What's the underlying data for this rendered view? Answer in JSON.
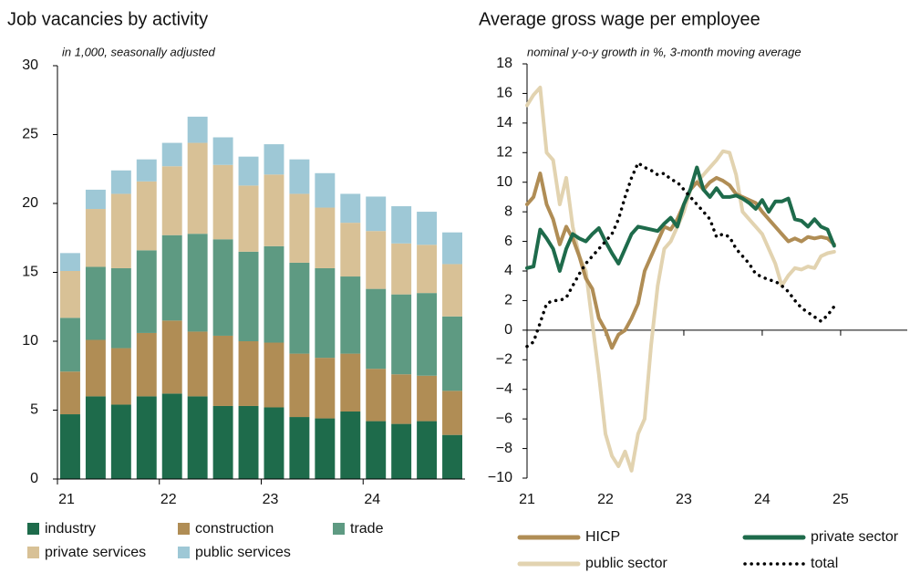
{
  "chart_data": [
    {
      "type": "bar",
      "stacked": true,
      "title": "Job vacancies by activity",
      "subtitle": "in 1,000, seasonally adjusted",
      "categories": [
        "21",
        null,
        null,
        null,
        "22",
        null,
        null,
        null,
        "23",
        null,
        null,
        null,
        "24",
        null,
        null,
        null
      ],
      "ylim": [
        0,
        30
      ],
      "yticks": [
        0,
        5,
        10,
        15,
        20,
        25,
        30
      ],
      "legend": "bottom",
      "series": [
        {
          "name": "industry",
          "color": "#1e6b4b",
          "values": [
            4.7,
            6.0,
            5.4,
            6.0,
            6.2,
            6.0,
            5.3,
            5.3,
            5.2,
            4.5,
            4.4,
            4.9,
            4.2,
            4.0,
            4.2,
            3.2
          ]
        },
        {
          "name": "construction",
          "color": "#b08d55",
          "values": [
            3.1,
            4.1,
            4.1,
            4.6,
            5.3,
            4.7,
            5.1,
            4.7,
            4.7,
            4.6,
            4.4,
            4.2,
            3.8,
            3.6,
            3.3,
            3.2
          ]
        },
        {
          "name": "trade",
          "color": "#5e9a82",
          "values": [
            3.9,
            5.3,
            5.8,
            6.0,
            6.2,
            7.1,
            7.0,
            6.5,
            7.0,
            6.6,
            6.5,
            5.6,
            5.8,
            5.8,
            6.0,
            5.4
          ]
        },
        {
          "name": "private services",
          "color": "#d8c196",
          "values": [
            3.4,
            4.2,
            5.4,
            5.0,
            5.0,
            6.6,
            5.4,
            4.8,
            5.2,
            5.0,
            4.4,
            3.9,
            4.2,
            3.7,
            3.5,
            3.8
          ]
        },
        {
          "name": "public services",
          "color": "#9ec8d6",
          "values": [
            1.3,
            1.4,
            1.7,
            1.6,
            1.7,
            1.9,
            2.0,
            2.1,
            2.2,
            2.5,
            2.5,
            2.1,
            2.5,
            2.7,
            2.4,
            2.3
          ]
        }
      ]
    },
    {
      "type": "line",
      "title": "Average gross wage per employee",
      "subtitle": "nominal y-o-y growth in %, 3-month moving average",
      "x": [
        21,
        21.083,
        21.167,
        21.25,
        21.333,
        21.417,
        21.5,
        21.583,
        21.667,
        21.75,
        21.833,
        21.917,
        22,
        22.083,
        22.167,
        22.25,
        22.333,
        22.417,
        22.5,
        22.583,
        22.667,
        22.75,
        22.833,
        22.917,
        23,
        23.083,
        23.167,
        23.25,
        23.333,
        23.417,
        23.5,
        23.583,
        23.667,
        23.75,
        23.833,
        23.917,
        24,
        24.083,
        24.167,
        24.25,
        24.333,
        24.417,
        24.5,
        24.583,
        24.667,
        24.75,
        24.833,
        24.917
      ],
      "xlim": [
        21,
        25.85
      ],
      "xticks": [
        21,
        22,
        23,
        24,
        25
      ],
      "ylim": [
        -10,
        18
      ],
      "yticks": [
        {
          "value": -10,
          "label": "−10"
        },
        {
          "value": -8,
          "label": "−8"
        },
        {
          "value": -6,
          "label": "−6"
        },
        {
          "value": -4,
          "label": "−4"
        },
        {
          "value": -2,
          "label": "−2"
        },
        0,
        2,
        4,
        6,
        8,
        10,
        12,
        14,
        16,
        18
      ],
      "legend": "bottom",
      "series": [
        {
          "name": "HICP",
          "color": "#b08d55",
          "style": "solid",
          "values": [
            8.5,
            9.0,
            10.6,
            8.5,
            7.5,
            5.8,
            7.0,
            6.2,
            5.0,
            3.5,
            2.8,
            0.8,
            0.0,
            -1.2,
            -0.3,
            0.0,
            0.8,
            1.8,
            4.0,
            5.0,
            6.0,
            7.0,
            6.8,
            7.5,
            8.5,
            9.5,
            10.0,
            9.5,
            10.0,
            10.3,
            10.1,
            9.8,
            9.2,
            9.0,
            8.8,
            8.6,
            8.0,
            7.5,
            7.0,
            6.5,
            6.0,
            6.2,
            6.0,
            6.3,
            6.2,
            6.3,
            6.2,
            5.8
          ]
        },
        {
          "name": "private sector",
          "color": "#1e6b4b",
          "style": "solid",
          "values": [
            4.2,
            4.3,
            6.8,
            6.2,
            5.5,
            4.0,
            5.5,
            6.5,
            6.2,
            6.0,
            6.5,
            6.9,
            6.0,
            5.2,
            4.5,
            5.5,
            6.5,
            7.0,
            6.9,
            6.8,
            6.7,
            7.2,
            7.6,
            7.0,
            8.5,
            9.5,
            11.0,
            9.5,
            9.0,
            9.6,
            9.0,
            9.0,
            9.1,
            8.9,
            8.6,
            8.2,
            8.8,
            8.0,
            8.7,
            8.7,
            8.9,
            7.5,
            7.4,
            7.0,
            7.5,
            7.0,
            6.8,
            5.7
          ]
        },
        {
          "name": "public sector",
          "color": "#e2d3b0",
          "style": "solid",
          "values": [
            15.2,
            15.9,
            16.4,
            12.0,
            11.5,
            8.5,
            10.3,
            7.0,
            5.0,
            4.0,
            0.5,
            -3.0,
            -7.0,
            -8.5,
            -9.2,
            -8.2,
            -9.5,
            -7.0,
            -6.0,
            -1.0,
            3.0,
            5.5,
            6.0,
            7.0,
            8.0,
            9.5,
            10.0,
            10.5,
            11.0,
            11.5,
            12.1,
            12.0,
            10.5,
            8.0,
            7.5,
            7.0,
            6.5,
            5.5,
            4.5,
            3.0,
            3.7,
            4.2,
            4.1,
            4.3,
            4.2,
            5.0,
            5.2,
            5.3
          ]
        },
        {
          "name": "total",
          "color": "#000000",
          "style": "dotted",
          "values": [
            -1.1,
            -0.8,
            0.5,
            1.8,
            2.0,
            2.0,
            2.2,
            3.0,
            3.8,
            4.5,
            5.0,
            5.5,
            6.0,
            6.5,
            7.5,
            9.0,
            10.3,
            11.3,
            11.0,
            10.8,
            10.5,
            10.6,
            10.2,
            10.0,
            9.5,
            9.0,
            8.5,
            8.0,
            7.5,
            6.3,
            6.5,
            6.3,
            5.5,
            5.0,
            4.5,
            3.8,
            3.6,
            3.4,
            3.3,
            3.0,
            2.6,
            2.0,
            1.5,
            1.2,
            0.9,
            0.6,
            1.0,
            1.6
          ]
        }
      ]
    }
  ]
}
